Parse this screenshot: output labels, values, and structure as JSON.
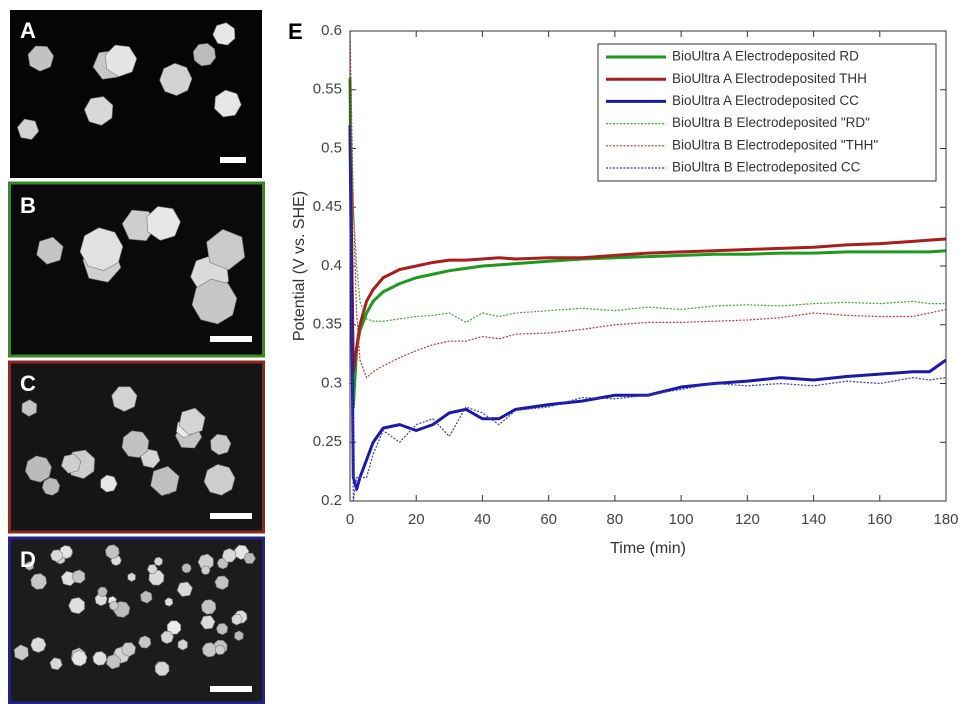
{
  "panel_labels": [
    "A",
    "B",
    "C",
    "D",
    "E"
  ],
  "chart_data": {
    "type": "line",
    "xlabel": "Time (min)",
    "ylabel": "Potential (V vs. SHE)",
    "xlim": [
      0,
      180
    ],
    "ylim": [
      0.2,
      0.6
    ],
    "xticks": [
      0,
      20,
      40,
      60,
      80,
      100,
      120,
      140,
      160,
      180
    ],
    "yticks": [
      0.2,
      0.25,
      0.3,
      0.35,
      0.4,
      0.45,
      0.5,
      0.55,
      0.6
    ],
    "legend": "upper right",
    "x": [
      0,
      1,
      2,
      3,
      5,
      7,
      10,
      15,
      20,
      25,
      30,
      35,
      40,
      45,
      50,
      60,
      70,
      80,
      90,
      100,
      110,
      120,
      130,
      140,
      150,
      160,
      170,
      175,
      180
    ],
    "series": [
      {
        "name": "BioUltra A Electrodeposited RD",
        "color": "#1e9a1e",
        "style": "solid",
        "values": [
          0.56,
          0.28,
          0.33,
          0.345,
          0.36,
          0.37,
          0.378,
          0.385,
          0.39,
          0.393,
          0.396,
          0.398,
          0.4,
          0.401,
          0.402,
          0.404,
          0.406,
          0.407,
          0.408,
          0.409,
          0.41,
          0.41,
          0.411,
          0.411,
          0.412,
          0.412,
          0.412,
          0.412,
          0.413
        ]
      },
      {
        "name": "BioUltra A Electrodeposited THH",
        "color": "#a81e1e",
        "style": "solid",
        "values": [
          0.52,
          0.31,
          0.33,
          0.35,
          0.37,
          0.38,
          0.39,
          0.397,
          0.4,
          0.403,
          0.405,
          0.405,
          0.406,
          0.407,
          0.406,
          0.407,
          0.407,
          0.409,
          0.411,
          0.412,
          0.413,
          0.414,
          0.415,
          0.416,
          0.418,
          0.419,
          0.421,
          0.422,
          0.423
        ]
      },
      {
        "name": "BioUltra A Electrodeposited CC",
        "color": "#1a1aa6",
        "style": "solid",
        "values": [
          0.52,
          0.22,
          0.21,
          0.22,
          0.235,
          0.25,
          0.262,
          0.265,
          0.26,
          0.265,
          0.275,
          0.278,
          0.27,
          0.27,
          0.278,
          0.282,
          0.285,
          0.29,
          0.29,
          0.297,
          0.3,
          0.302,
          0.305,
          0.303,
          0.306,
          0.308,
          0.31,
          0.31,
          0.32
        ]
      },
      {
        "name": "BioUltra B Electrodeposited \"RD\"",
        "color": "#3aa83a",
        "style": "dotted",
        "values": [
          0.56,
          0.45,
          0.4,
          0.37,
          0.355,
          0.353,
          0.353,
          0.355,
          0.357,
          0.358,
          0.36,
          0.352,
          0.36,
          0.357,
          0.36,
          0.362,
          0.364,
          0.362,
          0.365,
          0.363,
          0.366,
          0.367,
          0.366,
          0.368,
          0.369,
          0.368,
          0.37,
          0.368,
          0.368
        ]
      },
      {
        "name": "BioUltra B Electrodeposited \"THH\"",
        "color": "#c03a3a",
        "style": "dotted",
        "values": [
          0.6,
          0.45,
          0.36,
          0.32,
          0.305,
          0.31,
          0.315,
          0.322,
          0.328,
          0.333,
          0.336,
          0.336,
          0.34,
          0.338,
          0.342,
          0.343,
          0.346,
          0.35,
          0.352,
          0.352,
          0.353,
          0.354,
          0.356,
          0.36,
          0.358,
          0.357,
          0.357,
          0.36,
          0.363
        ]
      },
      {
        "name": "BioUltra B Electrodeposited CC",
        "color": "#3a3ac0",
        "style": "dotted",
        "values": [
          0.52,
          0.2,
          0.22,
          0.22,
          0.22,
          0.24,
          0.26,
          0.25,
          0.265,
          0.27,
          0.255,
          0.28,
          0.275,
          0.265,
          0.277,
          0.28,
          0.288,
          0.287,
          0.29,
          0.295,
          0.3,
          0.298,
          0.3,
          0.298,
          0.302,
          0.3,
          0.305,
          0.303,
          0.305
        ]
      }
    ]
  }
}
